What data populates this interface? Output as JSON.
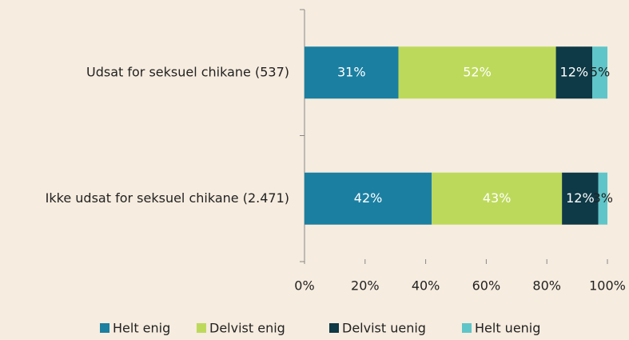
{
  "chart_data": {
    "type": "stacked_barh",
    "categories": [
      "Udsat for seksuel chikane (537)",
      "Ikke udsat for seksuel chikane (2.471)"
    ],
    "series": [
      {
        "name": "Helt enig",
        "color": "#1b7fa1",
        "label_color": "#ffffff",
        "values": [
          31,
          42
        ],
        "value_labels": [
          "31%",
          "42%"
        ]
      },
      {
        "name": "Delvist enig",
        "color": "#bdd95b",
        "label_color": "#ffffff",
        "values": [
          52,
          43
        ],
        "value_labels": [
          "52%",
          "43%"
        ]
      },
      {
        "name": "Delvist uenig",
        "color": "#0e3946",
        "label_color": "#ffffff",
        "values": [
          12,
          12
        ],
        "value_labels": [
          "12%",
          "12%"
        ]
      },
      {
        "name": "Helt uenig",
        "color": "#5fc5c9",
        "label_color": "#222222",
        "values": [
          5,
          3
        ],
        "value_labels": [
          "5%",
          "3%"
        ]
      }
    ],
    "xlim": [
      0,
      100
    ],
    "xticks": [
      {
        "value": 0,
        "label": "0%"
      },
      {
        "value": 20,
        "label": "20%"
      },
      {
        "value": 40,
        "label": "40%"
      },
      {
        "value": 60,
        "label": "60%"
      },
      {
        "value": 80,
        "label": "80%"
      },
      {
        "value": 100,
        "label": "100%"
      }
    ],
    "grid": false,
    "legend": "bottom"
  }
}
